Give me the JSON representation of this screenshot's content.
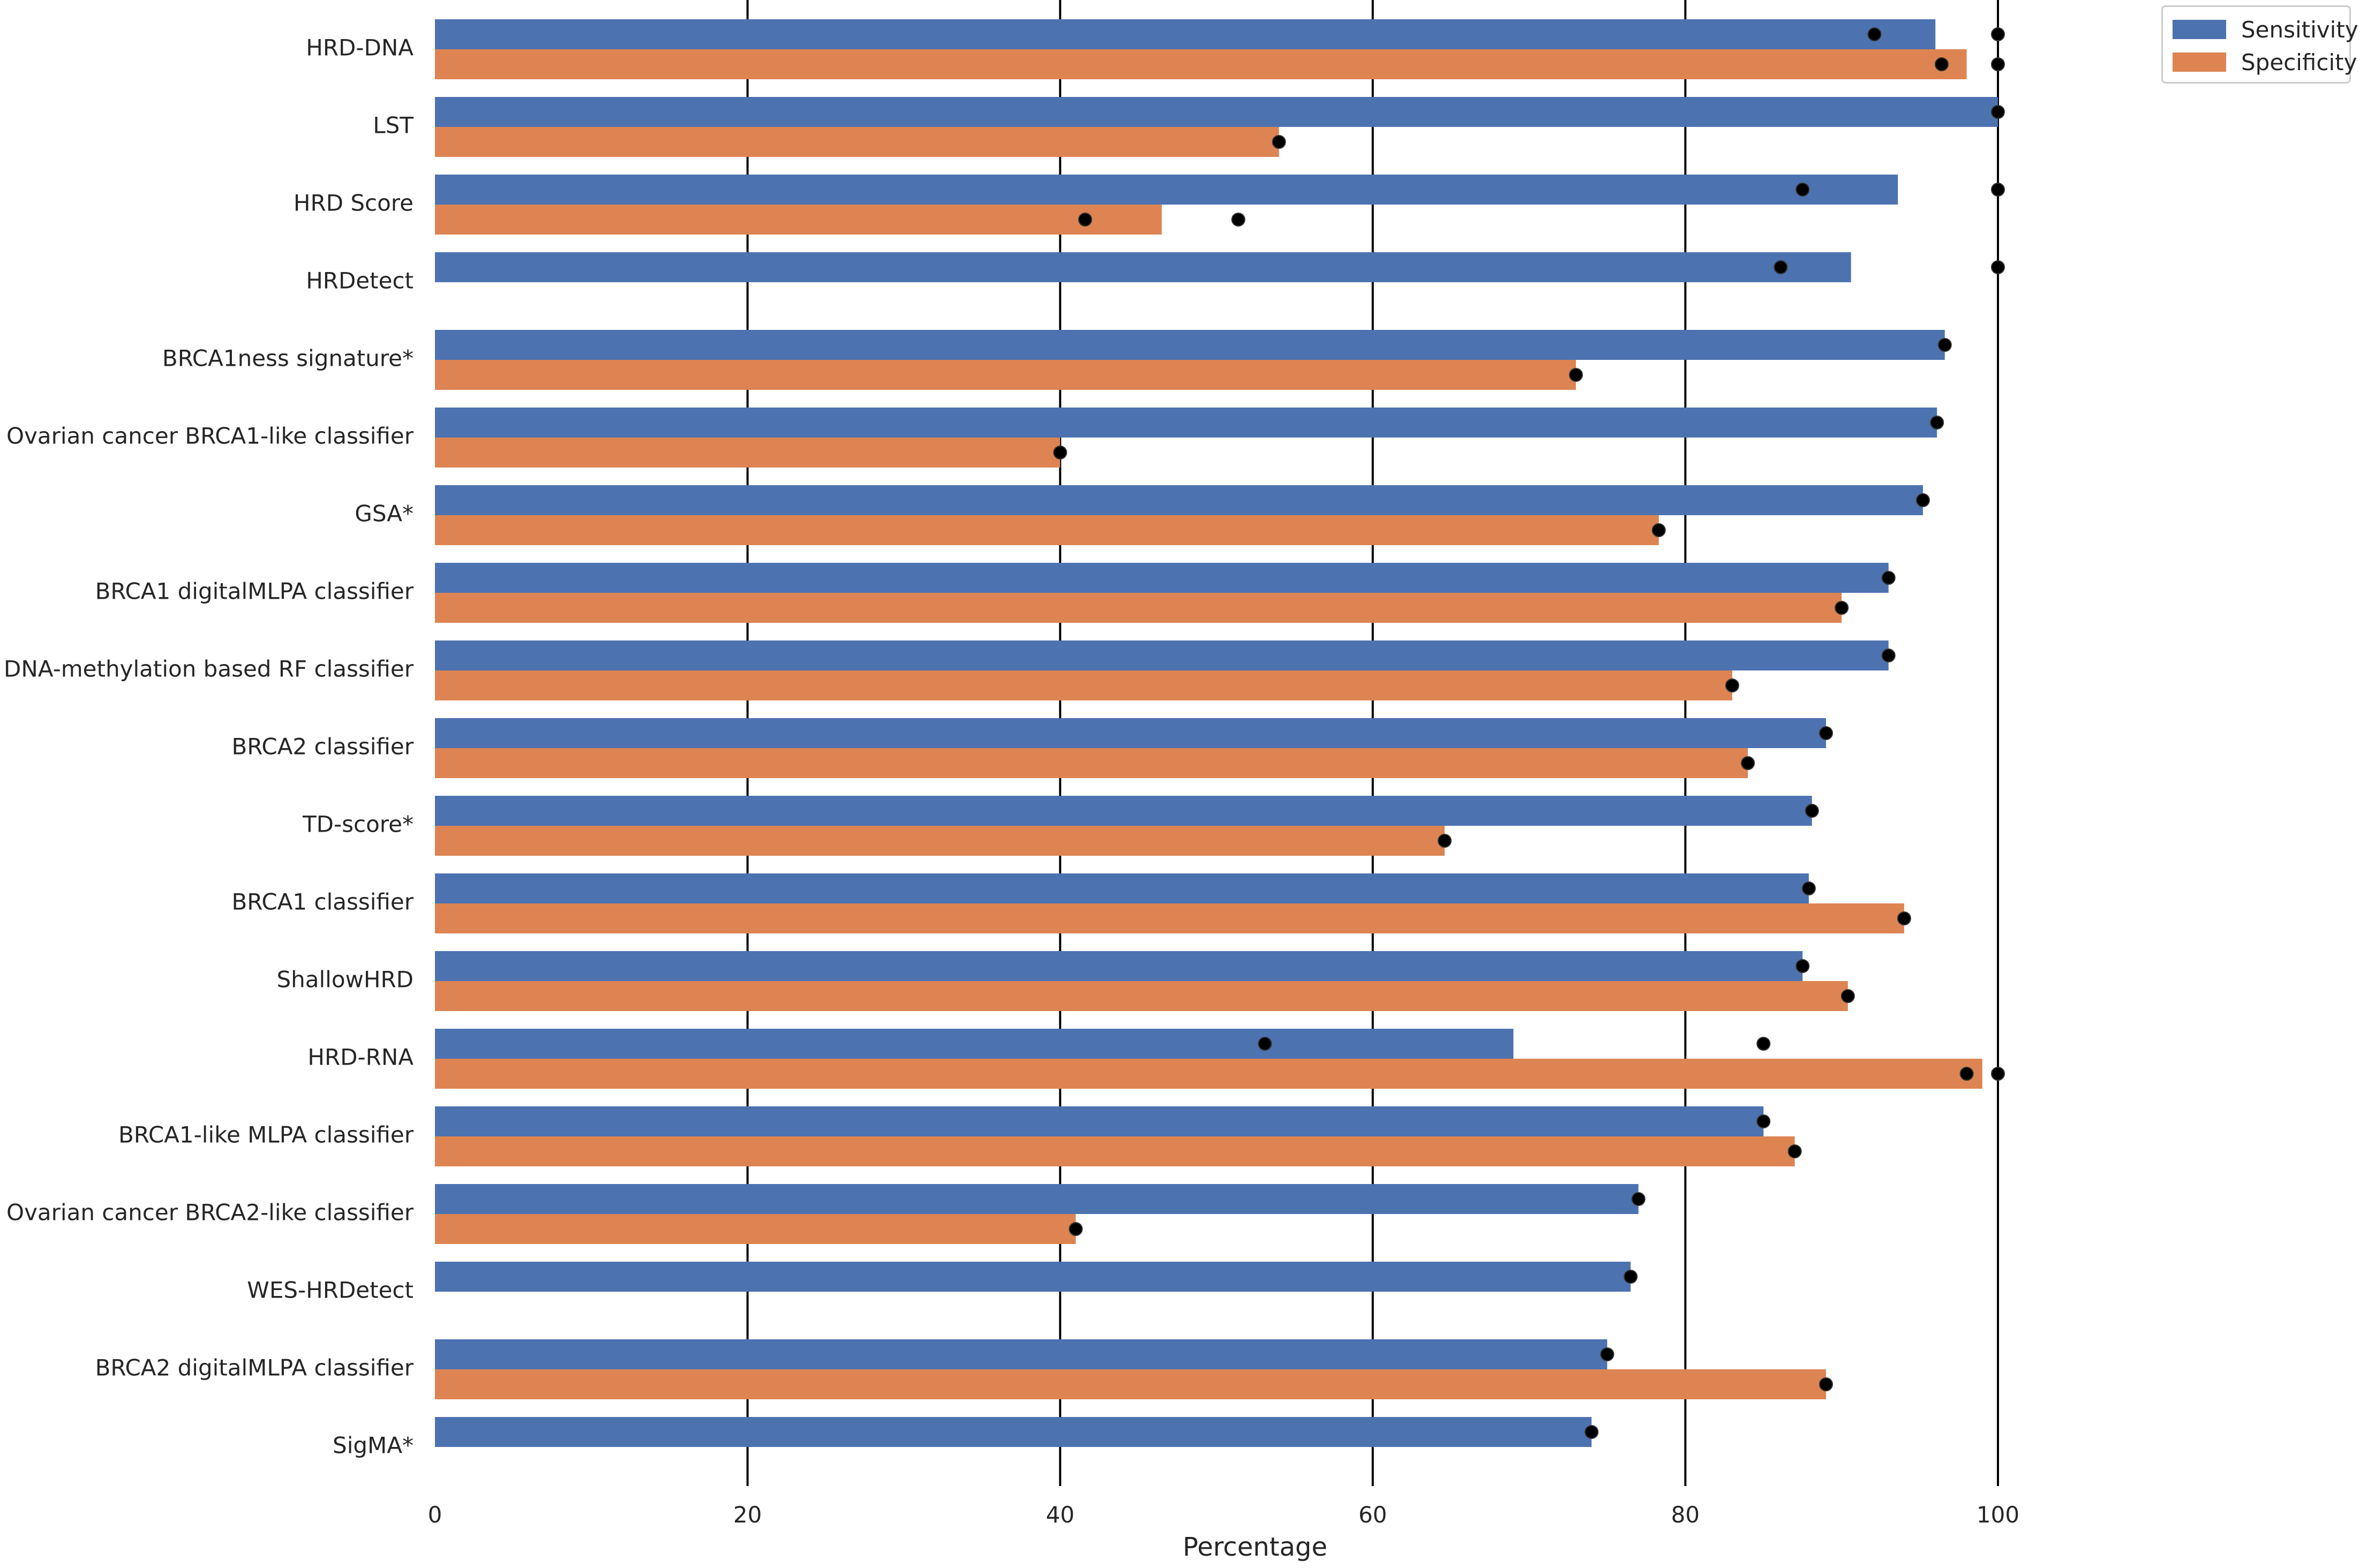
{
  "chart_data": {
    "type": "bar",
    "orientation": "horizontal",
    "xlabel": "Percentage",
    "ylabel": "",
    "xlim": [
      0,
      100
    ],
    "xticks": [
      0,
      20,
      40,
      60,
      80,
      100
    ],
    "grid": "vertical lines at x ticks",
    "legend": {
      "placement": "top-right, outside plot"
    },
    "categories": [
      "HRD-DNA",
      "LST",
      "HRD Score",
      "HRDetect",
      "BRCA1ness signature*",
      "Ovarian cancer BRCA1-like classifier",
      "GSA*",
      "BRCA1 digitalMLPA classifier",
      "DNA-methylation based RF classifier",
      "BRCA2 classifier",
      "TD-score*",
      "BRCA1 classifier",
      "ShallowHRD",
      "HRD-RNA",
      "BRCA1-like MLPA classifier",
      "Ovarian cancer BRCA2-like classifier",
      "WES-HRDetect",
      "BRCA2 digitalMLPA classifier",
      "SigMA*"
    ],
    "series": [
      {
        "name": "Sensitivity",
        "color": "#4c72b0",
        "values": [
          96,
          100,
          93.6,
          90.6,
          96.6,
          96.1,
          95.2,
          93,
          93,
          89,
          88.1,
          87.9,
          87.5,
          69,
          85,
          77,
          76.5,
          75,
          74
        ],
        "points": [
          [
            92.1,
            100
          ],
          [
            100
          ],
          [
            87.5,
            100
          ],
          [
            86.1,
            100
          ],
          [
            96.6
          ],
          [
            96.1
          ],
          [
            95.2
          ],
          [
            93
          ],
          [
            93
          ],
          [
            89
          ],
          [
            88.1
          ],
          [
            87.9
          ],
          [
            87.5
          ],
          [
            53.1,
            85
          ],
          [
            85
          ],
          [
            77
          ],
          [
            76.5
          ],
          [
            75
          ],
          [
            74
          ]
        ]
      },
      {
        "name": "Specificity",
        "color": "#dd8452",
        "values": [
          98,
          54,
          46.5,
          null,
          73,
          40,
          78.3,
          90,
          83,
          84,
          64.6,
          94,
          90.4,
          99,
          87,
          41,
          null,
          89,
          null
        ],
        "points": [
          [
            96.4,
            100
          ],
          [
            54
          ],
          [
            41.6,
            51.4
          ],
          [],
          [
            73
          ],
          [
            40
          ],
          [
            78.3
          ],
          [
            90
          ],
          [
            83
          ],
          [
            84
          ],
          [
            64.6
          ],
          [
            94
          ],
          [
            90.4
          ],
          [
            98,
            100
          ],
          [
            87
          ],
          [
            41
          ],
          [],
          [
            89
          ],
          []
        ]
      }
    ]
  }
}
